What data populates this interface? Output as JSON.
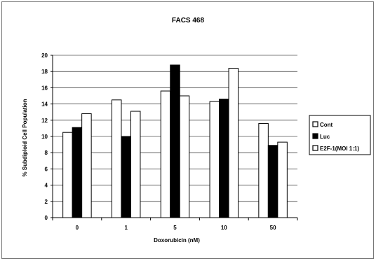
{
  "chart_data": {
    "type": "bar",
    "title": "FACS 468",
    "xlabel": "Doxorubicin (nM)",
    "ylabel": "% Subdiploid Cell Population",
    "categories": [
      "0",
      "1",
      "5",
      "10",
      "50"
    ],
    "series": [
      {
        "name": "Cont",
        "values": [
          10.5,
          14.5,
          15.6,
          14.3,
          11.6
        ],
        "color": "#ffffff"
      },
      {
        "name": "Luc",
        "values": [
          11.1,
          10.0,
          18.8,
          14.6,
          8.9
        ],
        "color": "#000000"
      },
      {
        "name": "E2F-1(MOI 1:1)",
        "values": [
          12.8,
          13.1,
          15.0,
          18.4,
          9.3
        ],
        "color": "#ffffff"
      }
    ],
    "ylim": [
      0,
      20
    ],
    "yticks": [
      0,
      2,
      4,
      6,
      8,
      10,
      12,
      14,
      16,
      18,
      20
    ],
    "grid": true,
    "legend": "right"
  }
}
